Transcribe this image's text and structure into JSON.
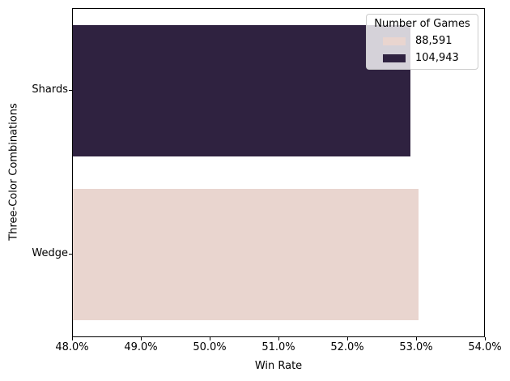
{
  "chart_data": {
    "type": "bar",
    "orientation": "horizontal",
    "title": "",
    "xlabel": "Win Rate",
    "ylabel": "Three-Color Combinations",
    "xlim": [
      48.0,
      54.0
    ],
    "x_tick_values": [
      48,
      49,
      50,
      51,
      52,
      53,
      54
    ],
    "x_tick_labels": [
      "48.0%",
      "49.0%",
      "50.0%",
      "51.0%",
      "52.0%",
      "53.0%",
      "54.0%"
    ],
    "categories": [
      "Shards",
      "Wedge"
    ],
    "values": [
      52.93,
      53.04
    ],
    "bars": [
      {
        "category": "Shards",
        "win_rate_pct": 52.93,
        "games": "104,943",
        "color": "#2f2240"
      },
      {
        "category": "Wedge",
        "win_rate_pct": 53.04,
        "games": "88,591",
        "color": "#e9d5cf"
      }
    ],
    "legend": {
      "title": "Number of Games",
      "position": "upper right",
      "entries": [
        {
          "label": "88,591",
          "color": "#e9d5cf"
        },
        {
          "label": "104,943",
          "color": "#2f2240"
        }
      ]
    },
    "grid": false,
    "bar_fill_fraction": 0.8
  }
}
